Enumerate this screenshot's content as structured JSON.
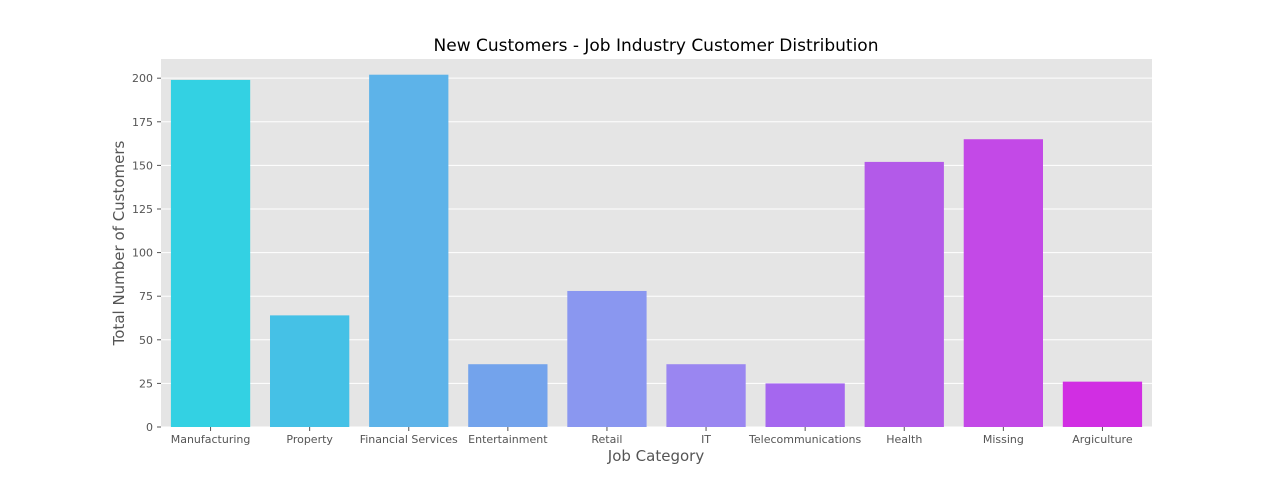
{
  "chart_data": {
    "type": "bar",
    "title": "New Customers - Job Industry Customer Distribution",
    "xlabel": "Job Category",
    "ylabel": "Total Number of Customers",
    "categories": [
      "Manufacturing",
      "Property",
      "Financial Services",
      "Entertainment",
      "Retail",
      "IT",
      "Telecommunications",
      "Health",
      "Missing",
      "Argiculture"
    ],
    "values": [
      199,
      64,
      202,
      36,
      78,
      36,
      25,
      152,
      165,
      26
    ],
    "colors": [
      "#33d1e3",
      "#45c1e6",
      "#5db3e9",
      "#73a3ec",
      "#8a97f0",
      "#9a86f1",
      "#a567ef",
      "#b35ae9",
      "#c349e7",
      "#d12ee3"
    ],
    "yticks": [
      0,
      25,
      50,
      75,
      100,
      125,
      150,
      175,
      200
    ],
    "ylim": [
      0,
      211
    ],
    "grid": true,
    "plot_background": "#e5e5e5"
  }
}
